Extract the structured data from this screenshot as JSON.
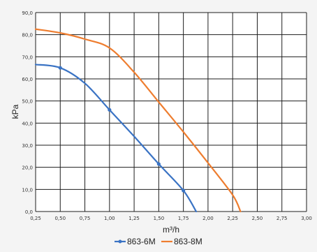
{
  "chart_data": {
    "type": "line",
    "xlabel": "m³/h",
    "ylabel": "kPa",
    "xlim": [
      0.25,
      3.0
    ],
    "ylim": [
      0,
      90
    ],
    "x_ticks": [
      "0,25",
      "0,50",
      "0,75",
      "1,00",
      "1,25",
      "1,50",
      "1,75",
      "2,00",
      "2,25",
      "2,50",
      "2,75",
      "3,00"
    ],
    "y_ticks": [
      "0,0",
      "10,0",
      "20,0",
      "30,0",
      "40,0",
      "50,0",
      "60,0",
      "70,0",
      "80,0",
      "90,0"
    ],
    "grid": true,
    "legend_position": "bottom",
    "series": [
      {
        "name": "863-6M",
        "color": "#3a73c4",
        "points": [
          [
            0.25,
            66.5
          ],
          [
            0.5,
            65.0
          ],
          [
            0.75,
            58.0
          ],
          [
            1.0,
            46.0
          ],
          [
            1.25,
            34.0
          ],
          [
            1.5,
            21.5
          ],
          [
            1.75,
            9.5
          ],
          [
            1.88,
            0.0
          ]
        ],
        "markers": [
          [
            0.5,
            65.0
          ],
          [
            1.0,
            46.0
          ],
          [
            1.5,
            21.5
          ],
          [
            1.75,
            9.5
          ]
        ]
      },
      {
        "name": "863-8M",
        "color": "#ee7d2f",
        "points": [
          [
            0.25,
            82.5
          ],
          [
            0.5,
            80.8
          ],
          [
            0.75,
            78.0
          ],
          [
            1.0,
            74.0
          ],
          [
            1.25,
            63.0
          ],
          [
            1.5,
            49.5
          ],
          [
            1.75,
            36.0
          ],
          [
            2.0,
            22.0
          ],
          [
            2.25,
            7.5
          ],
          [
            2.33,
            0.0
          ]
        ],
        "markers": []
      }
    ]
  }
}
